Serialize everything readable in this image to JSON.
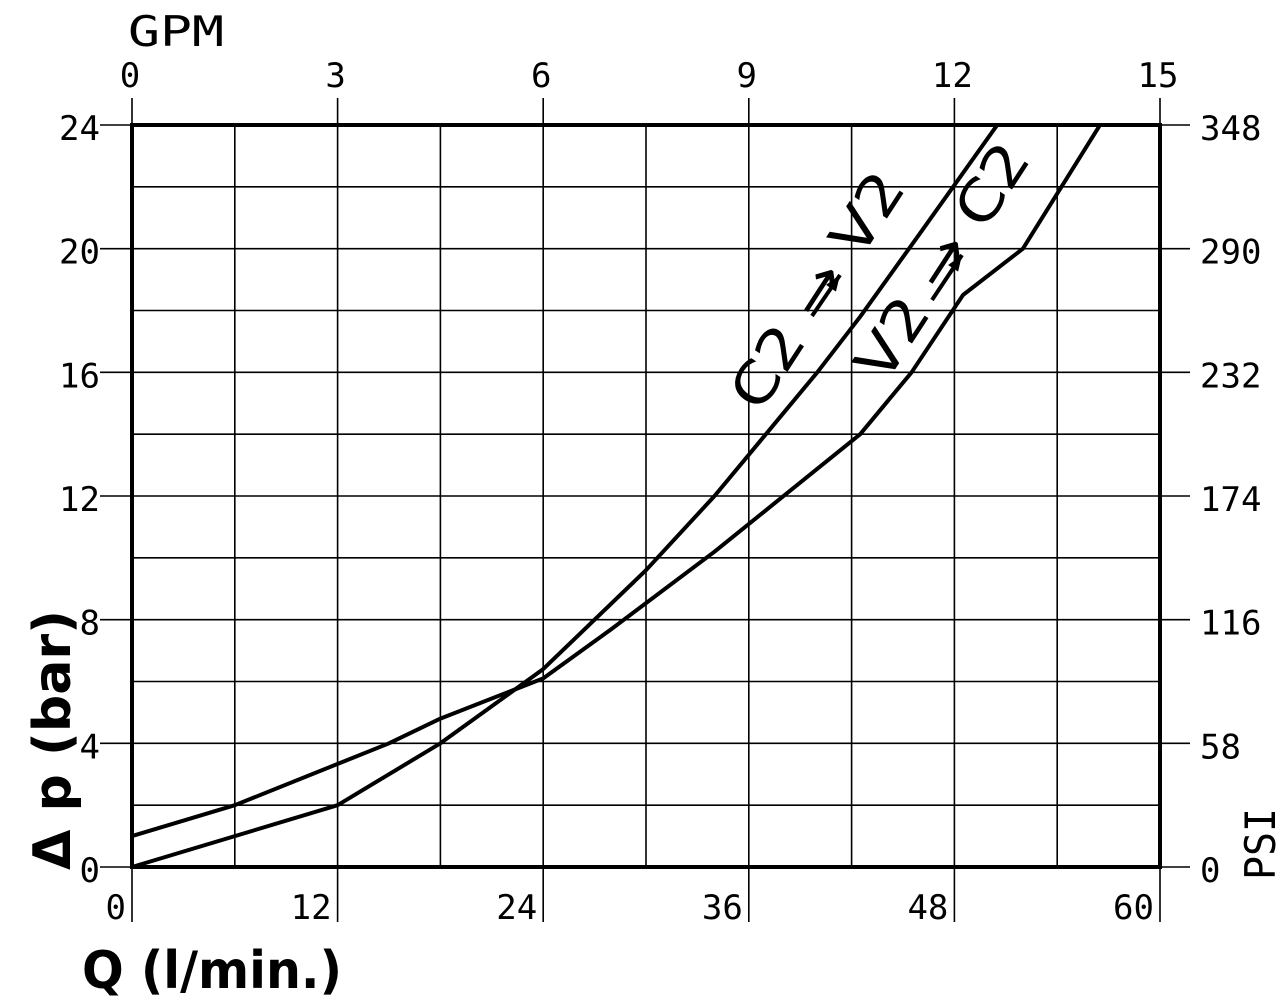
{
  "chart_data": {
    "type": "line",
    "title": "",
    "xlabel": "Q  (l/min.)",
    "ylabel": "Δ p  (bar)",
    "top_axis_label": "GPM",
    "right_axis_label": "PSI",
    "xlim": [
      0,
      60
    ],
    "ylim": [
      0,
      24
    ],
    "x_ticks": [
      "0",
      "12",
      "24",
      "36",
      "48",
      "60"
    ],
    "y_ticks": [
      "0",
      "4",
      "8",
      "12",
      "16",
      "20",
      "24"
    ],
    "top_ticks": [
      "0",
      "3",
      "6",
      "9",
      "12",
      "15"
    ],
    "right_ticks": [
      "0",
      "58",
      "116",
      "174",
      "232",
      "290",
      "348"
    ],
    "grid": true,
    "series": [
      {
        "name": "C2 → V2",
        "points": [
          [
            0,
            0
          ],
          [
            12,
            2
          ],
          [
            18,
            4
          ],
          [
            24,
            6.4
          ],
          [
            30,
            9.6
          ],
          [
            34,
            12
          ],
          [
            37,
            14
          ],
          [
            40,
            16
          ],
          [
            42.5,
            17.8
          ],
          [
            46,
            20.5
          ],
          [
            50.5,
            24
          ]
        ]
      },
      {
        "name": "V2 → C2",
        "points": [
          [
            0,
            1
          ],
          [
            6,
            2
          ],
          [
            15,
            4
          ],
          [
            18,
            4.8
          ],
          [
            24,
            6.1
          ],
          [
            28,
            7.7
          ],
          [
            34,
            10.2
          ],
          [
            42.5,
            14
          ],
          [
            45.5,
            16
          ],
          [
            48.5,
            18.5
          ],
          [
            52,
            20
          ],
          [
            56.5,
            24
          ]
        ]
      }
    ]
  }
}
